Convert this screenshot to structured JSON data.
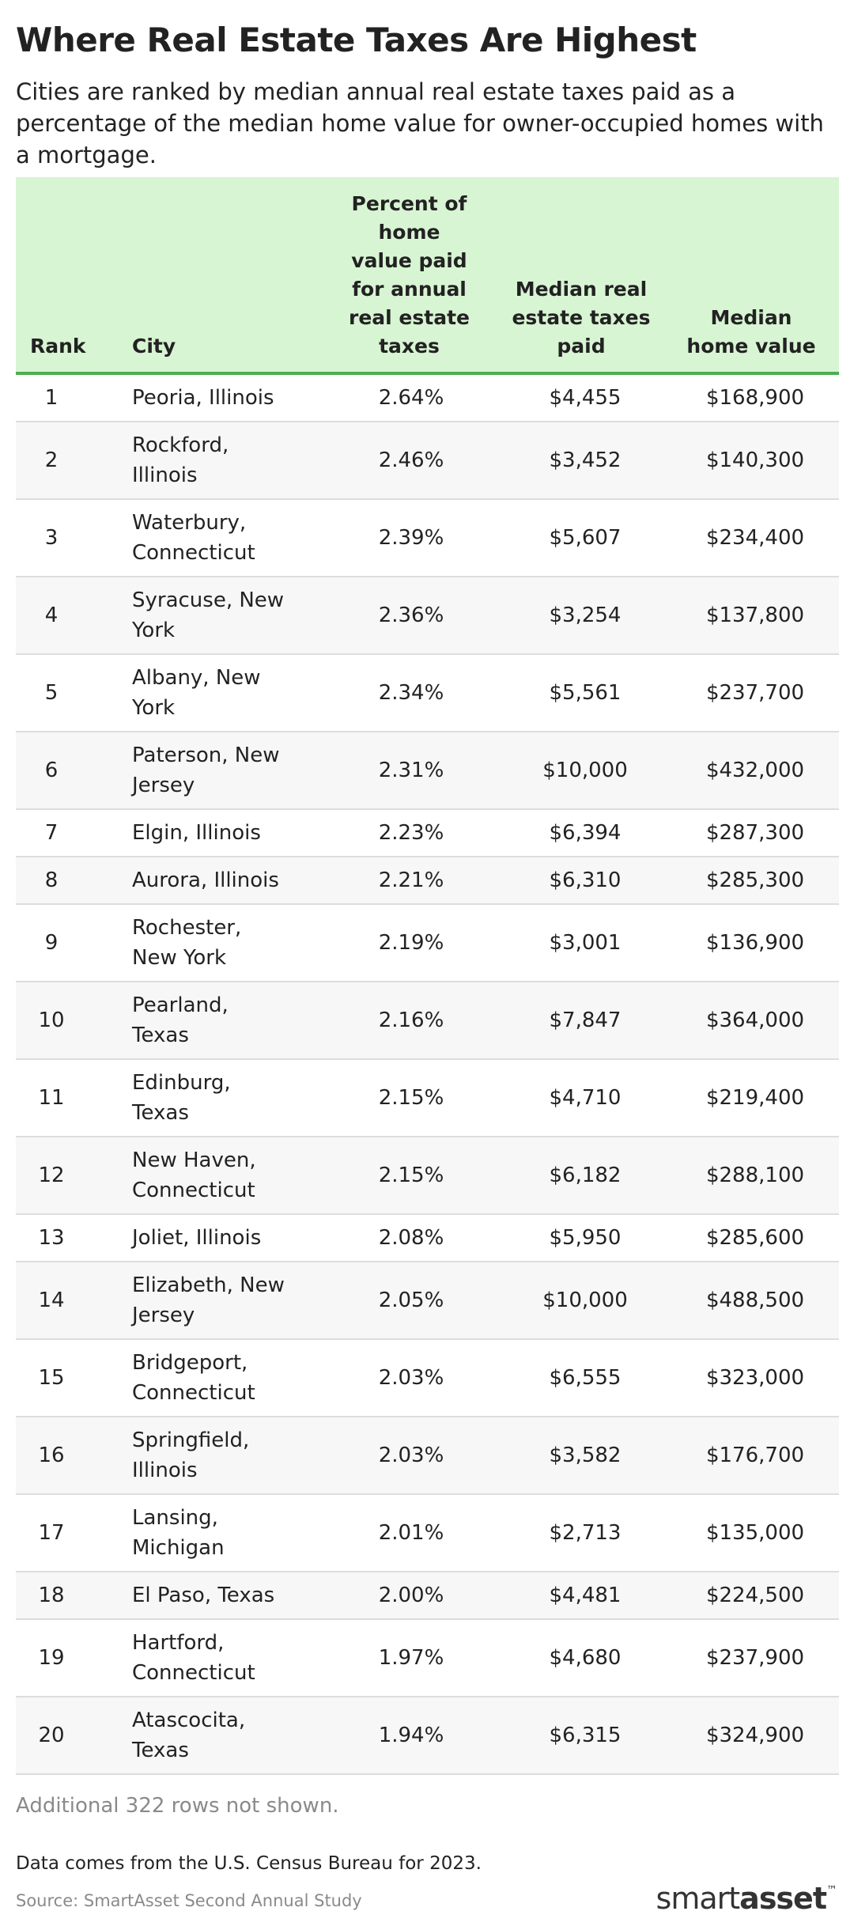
{
  "title": "Where Real Estate Taxes Are Highest",
  "subtitle": "Cities are ranked by median annual real estate taxes paid as a percentage of the median home value for owner-occupied homes with a mortgage.",
  "table": {
    "headers": [
      "Rank",
      "City",
      "Percent of home value paid for annual real estate taxes",
      "Median real estate taxes paid",
      "Median home value"
    ],
    "header_lines": [
      [
        "Rank"
      ],
      [
        "City"
      ],
      [
        "Percent of",
        "home",
        "value paid",
        "for annual",
        "real estate",
        "taxes"
      ],
      [
        "Median real",
        "estate taxes",
        "paid"
      ],
      [
        "Median",
        "home value"
      ]
    ],
    "rows": [
      {
        "rank": "1",
        "city": [
          "Peoria, Illinois"
        ],
        "percent": "2.64%",
        "taxes": "$4,455",
        "value": "$168,900"
      },
      {
        "rank": "2",
        "city": [
          "Rockford,",
          "Illinois"
        ],
        "percent": "2.46%",
        "taxes": "$3,452",
        "value": "$140,300"
      },
      {
        "rank": "3",
        "city": [
          "Waterbury,",
          "Connecticut"
        ],
        "percent": "2.39%",
        "taxes": "$5,607",
        "value": "$234,400"
      },
      {
        "rank": "4",
        "city": [
          "Syracuse, New",
          "York"
        ],
        "percent": "2.36%",
        "taxes": "$3,254",
        "value": "$137,800"
      },
      {
        "rank": "5",
        "city": [
          "Albany, New",
          "York"
        ],
        "percent": "2.34%",
        "taxes": "$5,561",
        "value": "$237,700"
      },
      {
        "rank": "6",
        "city": [
          "Paterson, New",
          "Jersey"
        ],
        "percent": "2.31%",
        "taxes": "$10,000",
        "value": "$432,000"
      },
      {
        "rank": "7",
        "city": [
          "Elgin, Illinois"
        ],
        "percent": "2.23%",
        "taxes": "$6,394",
        "value": "$287,300"
      },
      {
        "rank": "8",
        "city": [
          "Aurora, Illinois"
        ],
        "percent": "2.21%",
        "taxes": "$6,310",
        "value": "$285,300"
      },
      {
        "rank": "9",
        "city": [
          "Rochester,",
          "New York"
        ],
        "percent": "2.19%",
        "taxes": "$3,001",
        "value": "$136,900"
      },
      {
        "rank": "10",
        "city": [
          "Pearland,",
          "Texas"
        ],
        "percent": "2.16%",
        "taxes": "$7,847",
        "value": "$364,000"
      },
      {
        "rank": "11",
        "city": [
          "Edinburg,",
          "Texas"
        ],
        "percent": "2.15%",
        "taxes": "$4,710",
        "value": "$219,400"
      },
      {
        "rank": "12",
        "city": [
          "New Haven,",
          "Connecticut"
        ],
        "percent": "2.15%",
        "taxes": "$6,182",
        "value": "$288,100"
      },
      {
        "rank": "13",
        "city": [
          "Joliet, Illinois"
        ],
        "percent": "2.08%",
        "taxes": "$5,950",
        "value": "$285,600"
      },
      {
        "rank": "14",
        "city": [
          "Elizabeth, New",
          "Jersey"
        ],
        "percent": "2.05%",
        "taxes": "$10,000",
        "value": "$488,500"
      },
      {
        "rank": "15",
        "city": [
          "Bridgeport,",
          "Connecticut"
        ],
        "percent": "2.03%",
        "taxes": "$6,555",
        "value": "$323,000"
      },
      {
        "rank": "16",
        "city": [
          "Springfield,",
          "Illinois"
        ],
        "percent": "2.03%",
        "taxes": "$3,582",
        "value": "$176,700"
      },
      {
        "rank": "17",
        "city": [
          "Lansing,",
          "Michigan"
        ],
        "percent": "2.01%",
        "taxes": "$2,713",
        "value": "$135,000"
      },
      {
        "rank": "18",
        "city": [
          "El Paso, Texas"
        ],
        "percent": "2.00%",
        "taxes": "$4,481",
        "value": "$224,500"
      },
      {
        "rank": "19",
        "city": [
          "Hartford,",
          "Connecticut"
        ],
        "percent": "1.97%",
        "taxes": "$4,680",
        "value": "$237,900"
      },
      {
        "rank": "20",
        "city": [
          "Atascocita,",
          "Texas"
        ],
        "percent": "1.94%",
        "taxes": "$6,315",
        "value": "$324,900"
      }
    ]
  },
  "note": "Additional 322 rows not shown.",
  "data_source": "Data comes from the U.S. Census Bureau for 2023.",
  "source": "Source: SmartAsset Second Annual Study",
  "logo": {
    "text": "smartasset",
    "part1": "smart",
    "part2": "asset",
    "mark": "™"
  },
  "colors": {
    "header_bg": "#d8f5d3",
    "header_rule": "#4caf50",
    "alt_row_bg": "#f7f7f7"
  }
}
